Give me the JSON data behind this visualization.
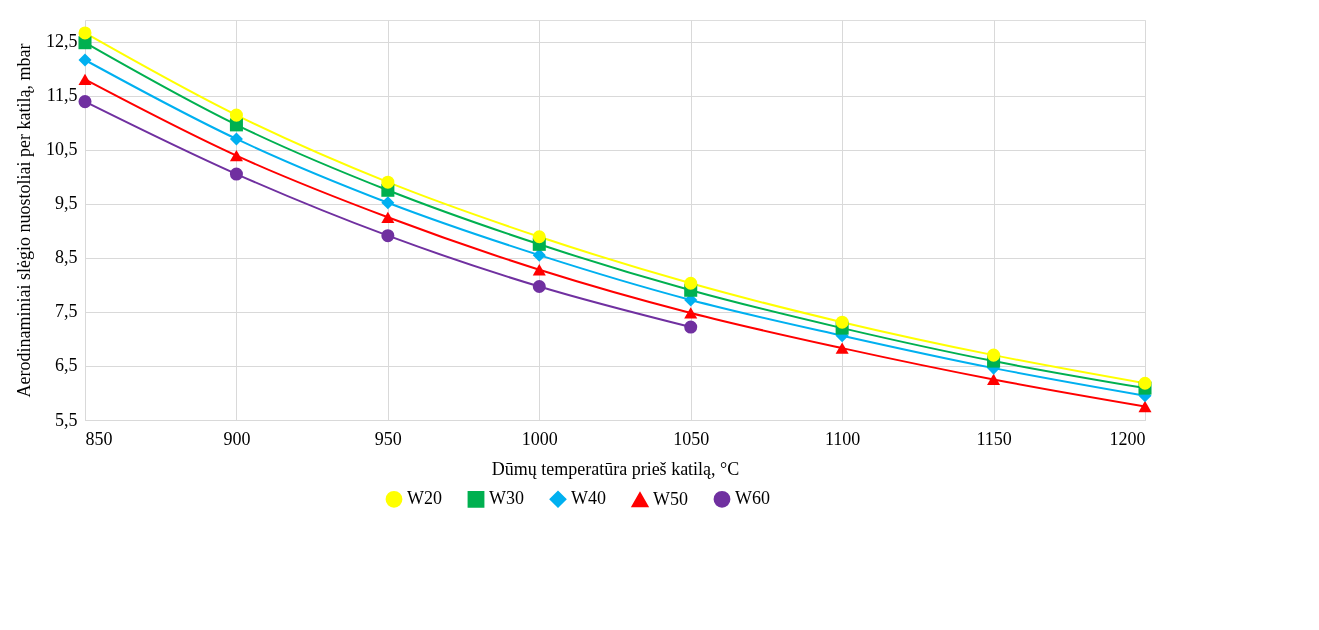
{
  "chart_data": {
    "type": "line",
    "xlabel": "Dūmų temperatūra prieš katilą, °C",
    "ylabel": "Aerodinaminiai slėgio nuostoliai per katilą, mbar",
    "x": [
      850,
      900,
      950,
      1000,
      1050,
      1100,
      1150,
      1200
    ],
    "xlim": [
      850,
      1200
    ],
    "xticks": [
      850,
      900,
      950,
      1000,
      1050,
      1100,
      1150,
      1200
    ],
    "ylim": [
      5.5,
      12.9
    ],
    "yticks": [
      {
        "value": 5.5,
        "label": "5,5"
      },
      {
        "value": 6.5,
        "label": "6,5"
      },
      {
        "value": 7.5,
        "label": "7,5"
      },
      {
        "value": 8.5,
        "label": "8,5"
      },
      {
        "value": 9.5,
        "label": "9,5"
      },
      {
        "value": 10.5,
        "label": "10,5"
      },
      {
        "value": 11.5,
        "label": "11,5"
      },
      {
        "value": 12.5,
        "label": "12,5"
      }
    ],
    "series": [
      {
        "name": "W20",
        "color": "#ffff00",
        "marker": "circle",
        "values": [
          12.66,
          11.14,
          9.9,
          8.89,
          8.03,
          7.31,
          6.7,
          6.18
        ]
      },
      {
        "name": "W30",
        "color": "#00b050",
        "marker": "square",
        "values": [
          12.48,
          10.96,
          9.75,
          8.75,
          7.9,
          7.2,
          6.59,
          6.09
        ]
      },
      {
        "name": "W40",
        "color": "#00b0f0",
        "marker": "diamond",
        "values": [
          12.16,
          10.7,
          9.52,
          8.55,
          7.72,
          7.06,
          6.46,
          5.95
        ]
      },
      {
        "name": "W50",
        "color": "#ff0000",
        "marker": "triangle",
        "values": [
          11.8,
          10.39,
          9.25,
          8.28,
          7.48,
          6.83,
          6.25,
          5.75
        ]
      },
      {
        "name": "W60",
        "color": "#7030a0",
        "marker": "circle",
        "values": [
          11.39,
          10.05,
          8.91,
          7.97,
          7.22,
          null,
          null,
          null
        ]
      }
    ],
    "grid": true,
    "legend": "bottom",
    "line_style": "solid"
  }
}
